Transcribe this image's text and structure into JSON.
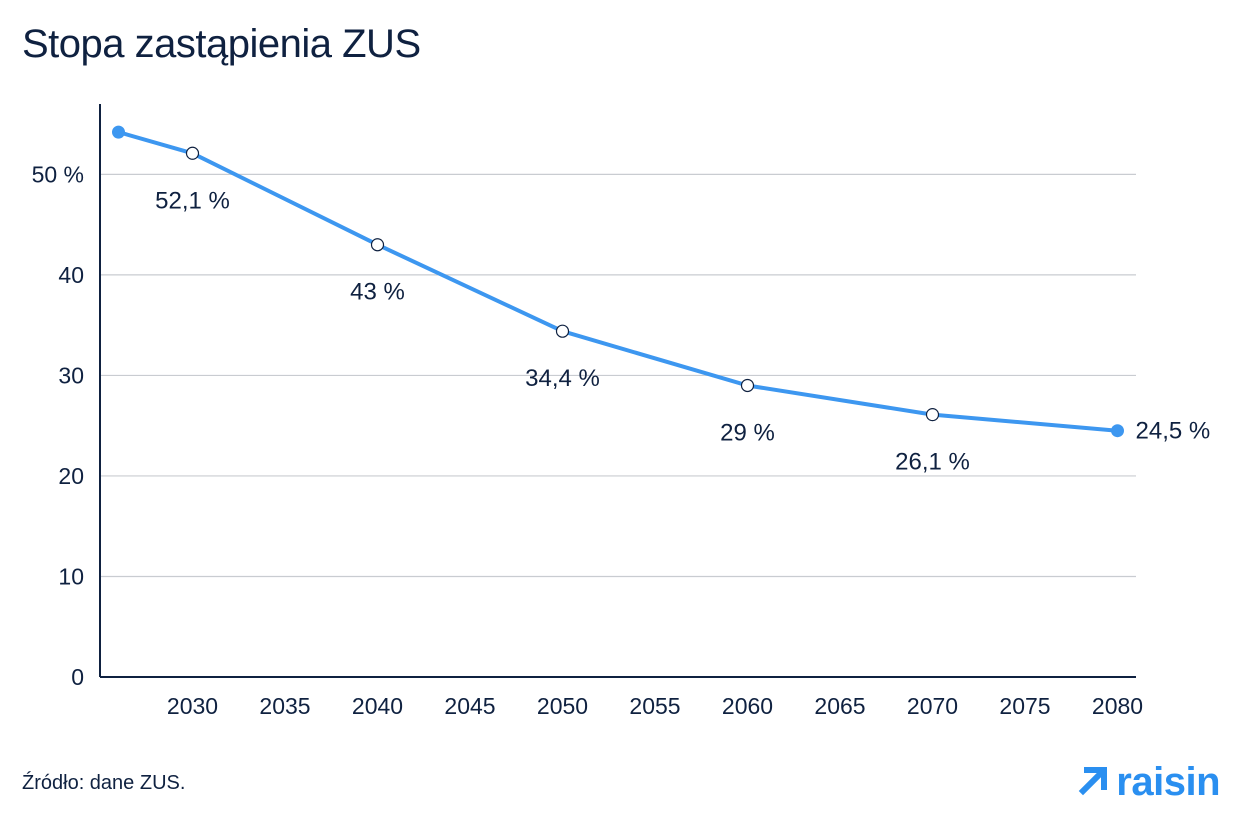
{
  "title": "Stopa zastąpienia ZUS",
  "source_note": "Źródło: dane ZUS.",
  "logo": {
    "text": "raisin",
    "icon": "arrow-up-right-icon",
    "color": "#2a8ff0"
  },
  "colors": {
    "line": "#3d97f0",
    "grid": "#c9ccd1",
    "text": "#0f2140"
  },
  "chart_data": {
    "type": "line",
    "title": "Stopa zastąpienia ZUS",
    "xlabel": "",
    "ylabel": "",
    "x": [
      2026,
      2030,
      2040,
      2050,
      2060,
      2070,
      2080
    ],
    "series": [
      {
        "values": [
          54.2,
          52.1,
          43,
          34.4,
          29,
          26.1,
          24.5
        ]
      }
    ],
    "point_labels": [
      "",
      "52,1 %",
      "43 %",
      "34,4 %",
      "29 %",
      "26,1 %",
      "24,5 %"
    ],
    "xticks": [
      2030,
      2035,
      2040,
      2045,
      2050,
      2055,
      2060,
      2065,
      2070,
      2075,
      2080
    ],
    "xtick_labels": [
      "2030",
      "2035",
      "2040",
      "2045",
      "2050",
      "2055",
      "2060",
      "2065",
      "2070",
      "2075",
      "2080"
    ],
    "yticks": [
      0,
      10,
      20,
      30,
      40,
      50
    ],
    "ytick_labels": [
      "0",
      "10",
      "20",
      "30",
      "40",
      "50 %"
    ],
    "xlim": [
      2025,
      2081
    ],
    "ylim": [
      0,
      57
    ],
    "grid": "horizontal"
  }
}
